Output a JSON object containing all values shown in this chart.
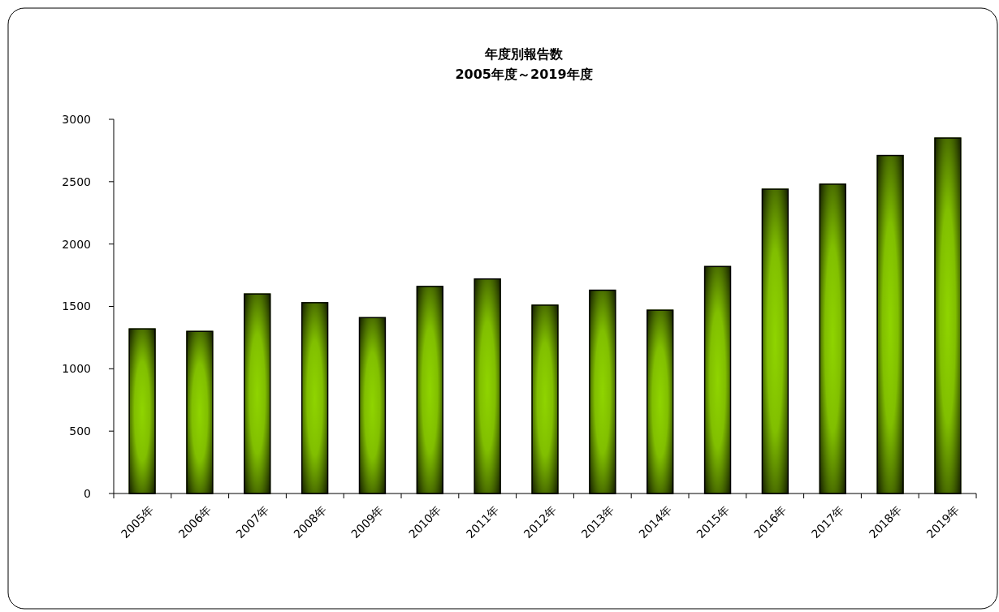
{
  "chart_data": {
    "type": "bar",
    "title": "年度別報告数",
    "subtitle": "2005年度～2019年度",
    "categories": [
      "2005年",
      "2006年",
      "2007年",
      "2008年",
      "2009年",
      "2010年",
      "2011年",
      "2012年",
      "2013年",
      "2014年",
      "2015年",
      "2016年",
      "2017年",
      "2018年",
      "2019年"
    ],
    "values": [
      1320,
      1300,
      1600,
      1530,
      1410,
      1660,
      1720,
      1510,
      1630,
      1470,
      1820,
      2440,
      2480,
      2710,
      2850
    ],
    "color": "#8fd400",
    "ylim": [
      0,
      3000
    ],
    "yticks": [
      0,
      500,
      1000,
      1500,
      2000,
      2500,
      3000
    ],
    "grid": false
  }
}
